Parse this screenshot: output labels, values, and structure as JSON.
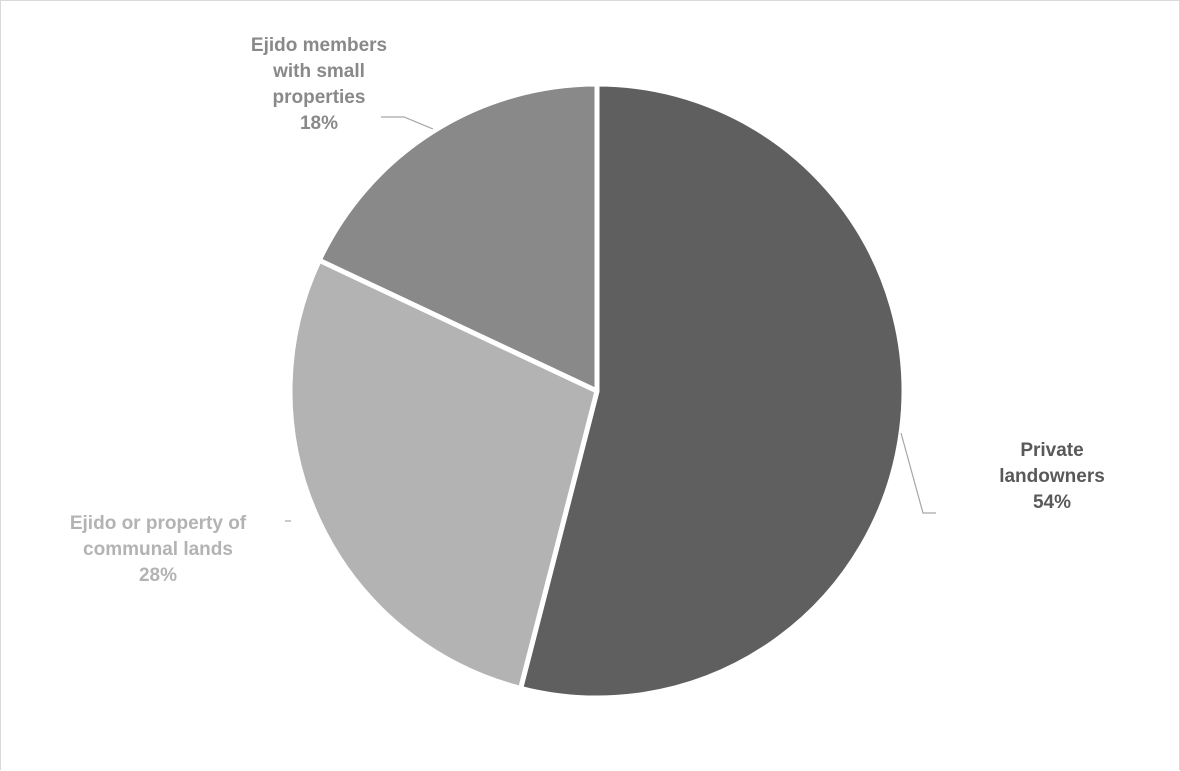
{
  "chart_data": {
    "type": "pie",
    "title": "",
    "slices": [
      {
        "label_lines": [
          "Private",
          "landowners"
        ],
        "percent_label": "54%",
        "value": 54,
        "color": "#5f5f5f",
        "label_color": "#595959"
      },
      {
        "label_lines": [
          "Ejido or property of",
          "communal lands"
        ],
        "percent_label": "28%",
        "value": 28,
        "color": "#b3b3b3",
        "label_color": "#b3b3b3"
      },
      {
        "label_lines": [
          "Ejido members",
          "with small",
          "properties"
        ],
        "percent_label": "18%",
        "value": 18,
        "color": "#898989",
        "label_color": "#898989"
      }
    ]
  }
}
